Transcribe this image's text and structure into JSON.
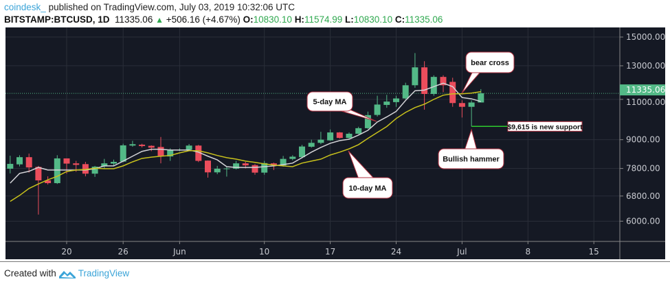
{
  "header": {
    "user": "coindesk_",
    "published": "published on TradingView.com, July 03, 2019 10:32:06 UTC",
    "symbol": "BITSTAMP:BTCUSD, 1D",
    "last": "11335.06",
    "change": "+506.16 (+4.67%)",
    "o_label": "O:",
    "o": "10830.10",
    "h_label": "H:",
    "h": "11574.99",
    "l_label": "L:",
    "l": "10830.10",
    "c_label": "C:",
    "c": "11335.06"
  },
  "footer": {
    "created_with": "Created with",
    "brand": "TradingView"
  },
  "colors": {
    "background": "#151924",
    "up": "#53b987",
    "down": "#eb4d5c",
    "ma5": "#d4d4d8",
    "ma10": "#c9c21c",
    "grid": "#2a2e39",
    "support": "#2ecc2e"
  },
  "chart_data": {
    "type": "candlestick",
    "y_scale": "log",
    "ylim": [
      5300,
      16500
    ],
    "y_ticks": [
      6000,
      6800,
      7800,
      9000,
      11000,
      13000,
      15000
    ],
    "y_tick_labels": [
      "6000.00",
      "6800.00",
      "7800.00",
      "9000.00",
      "11000.00",
      "13000.00",
      "15000.00"
    ],
    "x_ticks": [
      {
        "date": "2019-05-20",
        "label": "20"
      },
      {
        "date": "2019-05-26",
        "label": "26"
      },
      {
        "date": "2019-06-01",
        "label": "Jun"
      },
      {
        "date": "2019-06-10",
        "label": "10"
      },
      {
        "date": "2019-06-17",
        "label": "17"
      },
      {
        "date": "2019-06-24",
        "label": "24"
      },
      {
        "date": "2019-07-01",
        "label": "Jul"
      },
      {
        "date": "2019-07-08",
        "label": "8"
      },
      {
        "date": "2019-07-15",
        "label": "15"
      }
    ],
    "x_range": [
      "2019-05-14",
      "2019-07-17"
    ],
    "grid": true,
    "last_price_label": "11335.06",
    "last_price": 11335.06,
    "candles": [
      {
        "date": "2019-05-14",
        "o": 7790,
        "h": 8310,
        "l": 7610,
        "c": 7980
      },
      {
        "date": "2019-05-15",
        "o": 7960,
        "h": 8330,
        "l": 7880,
        "c": 8250
      },
      {
        "date": "2019-05-16",
        "o": 8250,
        "h": 8400,
        "l": 7640,
        "c": 7840
      },
      {
        "date": "2019-05-17",
        "o": 7860,
        "h": 7900,
        "l": 6200,
        "c": 7350
      },
      {
        "date": "2019-05-18",
        "o": 7350,
        "h": 7500,
        "l": 7200,
        "c": 7250
      },
      {
        "date": "2019-05-19",
        "o": 7250,
        "h": 8330,
        "l": 7220,
        "c": 8200
      },
      {
        "date": "2019-05-20",
        "o": 8200,
        "h": 8200,
        "l": 7600,
        "c": 7990
      },
      {
        "date": "2019-05-21",
        "o": 8000,
        "h": 8100,
        "l": 7670,
        "c": 7940
      },
      {
        "date": "2019-05-22",
        "o": 7970,
        "h": 8060,
        "l": 7500,
        "c": 7600
      },
      {
        "date": "2019-05-23",
        "o": 7600,
        "h": 7900,
        "l": 7480,
        "c": 7870
      },
      {
        "date": "2019-05-24",
        "o": 7880,
        "h": 8180,
        "l": 7800,
        "c": 8000
      },
      {
        "date": "2019-05-25",
        "o": 7990,
        "h": 8150,
        "l": 7900,
        "c": 8060
      },
      {
        "date": "2019-05-26",
        "o": 8070,
        "h": 8820,
        "l": 8050,
        "c": 8750
      },
      {
        "date": "2019-05-27",
        "o": 8740,
        "h": 8950,
        "l": 8690,
        "c": 8800
      },
      {
        "date": "2019-05-28",
        "o": 8780,
        "h": 8820,
        "l": 8660,
        "c": 8720
      },
      {
        "date": "2019-05-29",
        "o": 8730,
        "h": 8750,
        "l": 8500,
        "c": 8650
      },
      {
        "date": "2019-05-30",
        "o": 8680,
        "h": 9120,
        "l": 8000,
        "c": 8300
      },
      {
        "date": "2019-05-31",
        "o": 8280,
        "h": 8620,
        "l": 8100,
        "c": 8570
      },
      {
        "date": "2019-06-01",
        "o": 8560,
        "h": 8620,
        "l": 8500,
        "c": 8570
      },
      {
        "date": "2019-06-02",
        "o": 8560,
        "h": 8810,
        "l": 8530,
        "c": 8740
      },
      {
        "date": "2019-06-03",
        "o": 8740,
        "h": 8770,
        "l": 8050,
        "c": 8100
      },
      {
        "date": "2019-06-04",
        "o": 8110,
        "h": 8120,
        "l": 7450,
        "c": 7650
      },
      {
        "date": "2019-06-05",
        "o": 7650,
        "h": 7900,
        "l": 7580,
        "c": 7790
      },
      {
        "date": "2019-06-06",
        "o": 7790,
        "h": 7870,
        "l": 7490,
        "c": 7800
      },
      {
        "date": "2019-06-07",
        "o": 7790,
        "h": 8100,
        "l": 7760,
        "c": 8000
      },
      {
        "date": "2019-06-08",
        "o": 8000,
        "h": 8060,
        "l": 7800,
        "c": 7920
      },
      {
        "date": "2019-06-09",
        "o": 7930,
        "h": 7970,
        "l": 7560,
        "c": 7640
      },
      {
        "date": "2019-06-10",
        "o": 7640,
        "h": 8100,
        "l": 7560,
        "c": 8010
      },
      {
        "date": "2019-06-11",
        "o": 8000,
        "h": 8030,
        "l": 7740,
        "c": 7920
      },
      {
        "date": "2019-06-12",
        "o": 7920,
        "h": 8300,
        "l": 7870,
        "c": 8180
      },
      {
        "date": "2019-06-13",
        "o": 8180,
        "h": 8330,
        "l": 8120,
        "c": 8270
      },
      {
        "date": "2019-06-14",
        "o": 8250,
        "h": 8770,
        "l": 8200,
        "c": 8700
      },
      {
        "date": "2019-06-15",
        "o": 8690,
        "h": 9000,
        "l": 8650,
        "c": 8860
      },
      {
        "date": "2019-06-16",
        "o": 8860,
        "h": 9360,
        "l": 8800,
        "c": 9000
      },
      {
        "date": "2019-06-17",
        "o": 8970,
        "h": 9470,
        "l": 8950,
        "c": 9330
      },
      {
        "date": "2019-06-18",
        "o": 9330,
        "h": 9350,
        "l": 9050,
        "c": 9080
      },
      {
        "date": "2019-06-19",
        "o": 9080,
        "h": 9330,
        "l": 9050,
        "c": 9270
      },
      {
        "date": "2019-06-20",
        "o": 9270,
        "h": 9600,
        "l": 9250,
        "c": 9530
      },
      {
        "date": "2019-06-21",
        "o": 9530,
        "h": 10350,
        "l": 9500,
        "c": 10170
      },
      {
        "date": "2019-06-22",
        "o": 10180,
        "h": 11200,
        "l": 10100,
        "c": 10720
      },
      {
        "date": "2019-06-23",
        "o": 10700,
        "h": 11250,
        "l": 10550,
        "c": 10880
      },
      {
        "date": "2019-06-24",
        "o": 10850,
        "h": 11200,
        "l": 10600,
        "c": 11050
      },
      {
        "date": "2019-06-25",
        "o": 11050,
        "h": 11950,
        "l": 11000,
        "c": 11800
      },
      {
        "date": "2019-06-26",
        "o": 11800,
        "h": 13850,
        "l": 11650,
        "c": 12900
      },
      {
        "date": "2019-06-27",
        "o": 12900,
        "h": 13300,
        "l": 10450,
        "c": 11300
      },
      {
        "date": "2019-06-28",
        "o": 11300,
        "h": 12400,
        "l": 11200,
        "c": 12300
      },
      {
        "date": "2019-06-29",
        "o": 12300,
        "h": 12400,
        "l": 11400,
        "c": 11800
      },
      {
        "date": "2019-06-30",
        "o": 12000,
        "h": 12250,
        "l": 10600,
        "c": 10800
      },
      {
        "date": "2019-07-01",
        "o": 10800,
        "h": 10950,
        "l": 10050,
        "c": 10600
      },
      {
        "date": "2019-07-02",
        "o": 10600,
        "h": 10950,
        "l": 9615,
        "c": 10830
      },
      {
        "date": "2019-07-03",
        "o": 10830.1,
        "h": 11574.99,
        "l": 10830.1,
        "c": 11335.06
      }
    ],
    "series": [
      {
        "name": "5-day MA",
        "values": [
          7250,
          7610,
          7690,
          7840,
          7740,
          7740,
          7740,
          7740,
          7740,
          7790,
          7900,
          7900,
          8090,
          8290,
          8490,
          8580,
          8580,
          8550,
          8550,
          8550,
          8460,
          8290,
          8140,
          7870,
          7840,
          7840,
          7840,
          7870,
          7900,
          7950,
          8010,
          8230,
          8460,
          8660,
          8840,
          8960,
          9020,
          9210,
          9430,
          9830,
          10080,
          10360,
          10940,
          11480,
          11520,
          11720,
          11920,
          11720,
          11100,
          11030,
          10880
        ]
      },
      {
        "name": "10-day MA",
        "values": [
          6620,
          6820,
          7060,
          7220,
          7370,
          7500,
          7680,
          7740,
          7760,
          7810,
          7790,
          7790,
          7900,
          8060,
          8200,
          8250,
          8290,
          8320,
          8430,
          8520,
          8520,
          8430,
          8320,
          8230,
          8170,
          8090,
          8040,
          7980,
          7930,
          7900,
          7870,
          8010,
          8090,
          8170,
          8340,
          8460,
          8600,
          8780,
          9060,
          9330,
          9610,
          10000,
          10310,
          10560,
          10740,
          11000,
          11230,
          11310,
          11310,
          11350,
          11430
        ]
      }
    ],
    "annotations": [
      {
        "text": "bear cross",
        "target_date": "2019-06-30",
        "target_price": 11350
      },
      {
        "text": "5-day MA",
        "target_date": "2019-06-21",
        "target_price": 9750
      },
      {
        "text": "10-day MA",
        "target_date": "2019-06-19",
        "target_price": 8650
      },
      {
        "text": "Bullish hammer",
        "target_date": "2019-07-02",
        "target_price": 9615
      },
      {
        "text": "$9,615 is new support",
        "target_date": "2019-07-02",
        "target_price": 9615
      }
    ]
  }
}
